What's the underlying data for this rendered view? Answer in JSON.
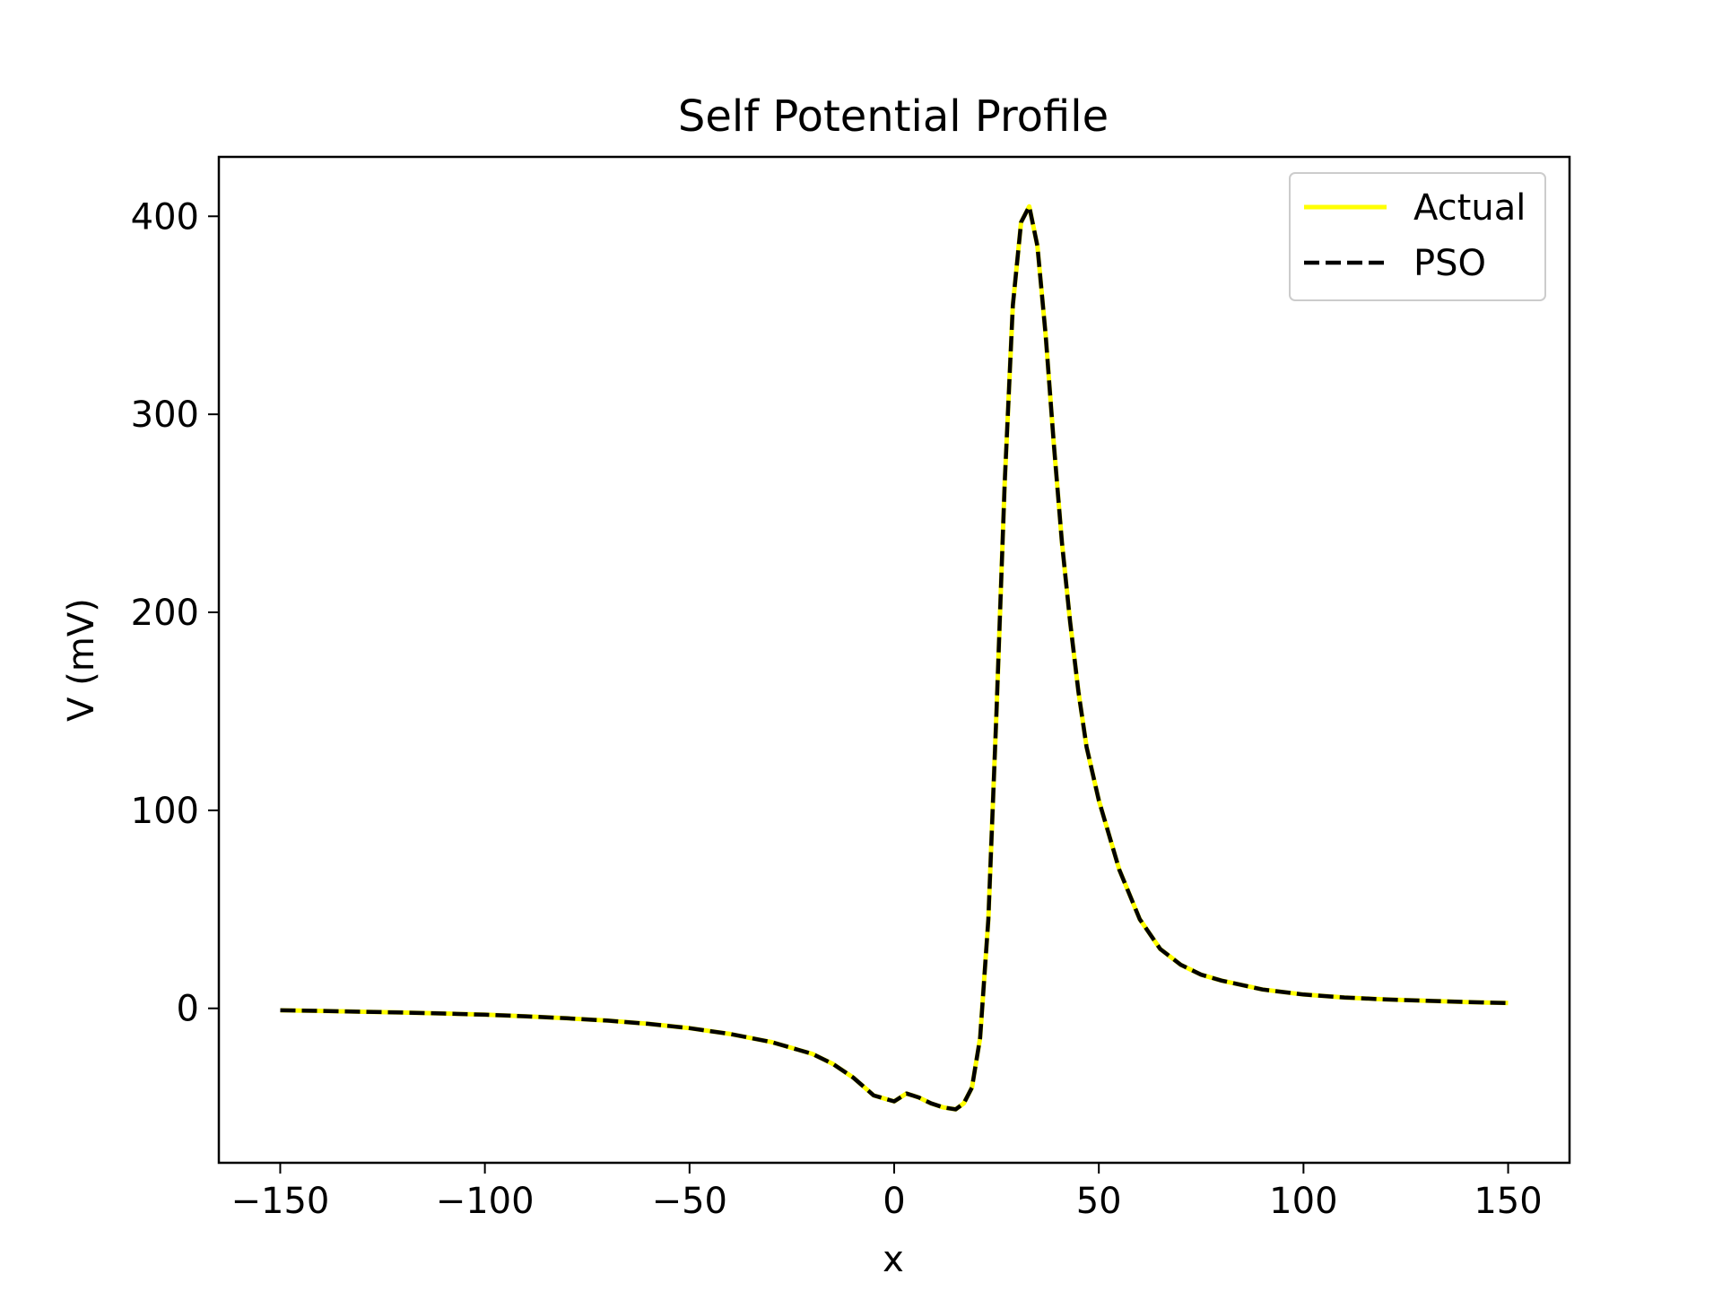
{
  "chart_data": {
    "type": "line",
    "title": "Self Potential Profile",
    "xlabel": "x",
    "ylabel": "V (mV)",
    "xlim": [
      -165,
      165
    ],
    "ylim": [
      -78,
      430
    ],
    "xticks": [
      -150,
      -100,
      -50,
      0,
      50,
      100,
      150
    ],
    "xtick_labels": [
      "−150",
      "−100",
      "−50",
      "0",
      "50",
      "100",
      "150"
    ],
    "yticks": [
      0,
      100,
      200,
      300,
      400
    ],
    "ytick_labels": [
      "0",
      "100",
      "200",
      "300",
      "400"
    ],
    "grid": false,
    "legend_position": "top-right",
    "series": [
      {
        "name": "Actual",
        "color": "#ffff00",
        "style": "solid",
        "x": [
          -150,
          -140,
          -130,
          -120,
          -110,
          -100,
          -90,
          -80,
          -70,
          -60,
          -50,
          -40,
          -30,
          -20,
          -15,
          -10,
          -5,
          0,
          3,
          6,
          9,
          12,
          15,
          17,
          19,
          21,
          23,
          25,
          27,
          29,
          31,
          33,
          35,
          37,
          39,
          41,
          43,
          45,
          47,
          50,
          55,
          60,
          65,
          70,
          75,
          80,
          90,
          100,
          110,
          120,
          130,
          140,
          150
        ],
        "y": [
          -1,
          -1.3,
          -1.7,
          -2.1,
          -2.6,
          -3.2,
          -4,
          -5,
          -6.2,
          -7.8,
          -10,
          -13,
          -17,
          -23,
          -28,
          -35,
          -44,
          -47,
          -43,
          -45,
          -48,
          -50,
          -51,
          -48,
          -40,
          -15,
          45,
          150,
          265,
          355,
          397,
          405,
          385,
          340,
          285,
          235,
          195,
          160,
          132,
          105,
          70,
          45,
          30,
          22,
          17,
          14,
          9.5,
          7,
          5.5,
          4.5,
          3.8,
          3.2,
          2.7
        ]
      },
      {
        "name": "PSO",
        "color": "#000000",
        "style": "dashed",
        "x": [
          -150,
          -140,
          -130,
          -120,
          -110,
          -100,
          -90,
          -80,
          -70,
          -60,
          -50,
          -40,
          -30,
          -20,
          -15,
          -10,
          -5,
          0,
          3,
          6,
          9,
          12,
          15,
          17,
          19,
          21,
          23,
          25,
          27,
          29,
          31,
          33,
          35,
          37,
          39,
          41,
          43,
          45,
          47,
          50,
          55,
          60,
          65,
          70,
          75,
          80,
          90,
          100,
          110,
          120,
          130,
          140,
          150
        ],
        "y": [
          -1,
          -1.3,
          -1.7,
          -2.1,
          -2.6,
          -3.2,
          -4,
          -5,
          -6.2,
          -7.8,
          -10,
          -13,
          -17,
          -23,
          -28,
          -35,
          -44,
          -47,
          -43,
          -45,
          -48,
          -50,
          -51,
          -48,
          -40,
          -15,
          45,
          150,
          265,
          355,
          397,
          405,
          385,
          340,
          285,
          235,
          195,
          160,
          132,
          105,
          70,
          45,
          30,
          22,
          17,
          14,
          9.5,
          7,
          5.5,
          4.5,
          3.8,
          3.2,
          2.7
        ]
      }
    ]
  }
}
